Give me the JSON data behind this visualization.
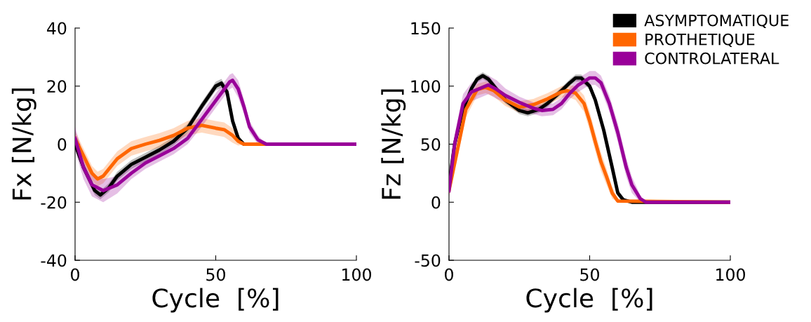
{
  "chart_data": [
    {
      "type": "line",
      "xlabel": "Cycle  [%]",
      "ylabel": "Fx [N/kg]",
      "xlim": [
        0,
        100
      ],
      "xticks": [
        0,
        50,
        100
      ],
      "ylim": [
        -40,
        40
      ],
      "yticks": [
        -40,
        -20,
        0,
        20,
        40
      ],
      "grid": false,
      "legend": false,
      "marker": "none",
      "line_style": "solid",
      "series": [
        {
          "color": "#000000",
          "x": [
            0,
            3,
            7,
            9,
            12,
            15,
            20,
            25,
            30,
            35,
            40,
            45,
            50,
            52,
            54,
            56,
            58,
            60,
            100
          ],
          "values": [
            0,
            -8,
            -16,
            -17.5,
            -15,
            -11,
            -7,
            -4.5,
            -2,
            1,
            5.5,
            13,
            20,
            21,
            18,
            8,
            2,
            0,
            0
          ],
          "lower": [
            -1.5,
            -9.5,
            -17.5,
            -19,
            -16.5,
            -12.5,
            -8.5,
            -6,
            -3.5,
            -0.5,
            4,
            11.5,
            18.5,
            19.5,
            16.5,
            6.5,
            0.5,
            0,
            0
          ],
          "upper": [
            1.5,
            -6.5,
            -14.5,
            -16,
            -13.5,
            -9.5,
            -5.5,
            -3,
            -0.5,
            2.5,
            7,
            14.5,
            21.5,
            22.5,
            19.5,
            9.5,
            3.5,
            0,
            0
          ]
        },
        {
          "color": "#ff6600",
          "x": [
            0,
            3,
            6,
            8,
            10,
            15,
            20,
            25,
            30,
            35,
            40,
            45,
            50,
            53,
            56,
            58,
            60,
            100
          ],
          "values": [
            2,
            -4,
            -10,
            -12,
            -11,
            -5,
            -1.5,
            0,
            1.3,
            3,
            5.5,
            6.5,
            5.5,
            5,
            3,
            1,
            0,
            0
          ],
          "lower": [
            -0.5,
            -6.5,
            -12.5,
            -14.5,
            -13.5,
            -7.5,
            -4,
            -2.5,
            -1.2,
            0.5,
            3,
            4,
            3,
            2.5,
            0.5,
            -0.5,
            0,
            0
          ],
          "upper": [
            4.5,
            -1.5,
            -7.5,
            -9.5,
            -8.5,
            -2.5,
            1,
            2.5,
            3.8,
            5.5,
            8,
            9,
            8,
            7.5,
            5.5,
            2.5,
            0,
            0
          ]
        },
        {
          "color": "#990099",
          "x": [
            0,
            3,
            6,
            10,
            15,
            20,
            25,
            30,
            35,
            40,
            45,
            50,
            55,
            56,
            58,
            60,
            62,
            65,
            68,
            100
          ],
          "values": [
            2,
            -8,
            -14,
            -16,
            -14,
            -10,
            -6.5,
            -4,
            -1.5,
            2,
            8.5,
            15,
            21.5,
            22,
            19,
            13,
            6,
            1.5,
            0,
            0
          ],
          "lower": [
            -2,
            -12,
            -18,
            -20,
            -17,
            -12,
            -8.5,
            -6,
            -3.5,
            0,
            6,
            12.5,
            19,
            19.5,
            16,
            10.5,
            4,
            0,
            0,
            0
          ],
          "upper": [
            6,
            -4,
            -10,
            -12,
            -11,
            -8,
            -4.5,
            -2,
            0.5,
            4,
            11,
            17.5,
            24,
            24.5,
            22,
            15.5,
            8,
            3,
            0,
            0
          ]
        }
      ]
    },
    {
      "type": "line",
      "xlabel": "Cycle  [%]",
      "ylabel": "Fz [N/kg]",
      "xlim": [
        0,
        100
      ],
      "xticks": [
        0,
        50,
        100
      ],
      "ylim": [
        -50,
        150
      ],
      "yticks": [
        -50,
        0,
        50,
        100,
        150
      ],
      "grid": false,
      "legend": "top right",
      "marker": "none",
      "line_style": "solid",
      "series": [
        {
          "name": "ASYMPTOMATIQUE",
          "color": "#000000",
          "x": [
            0,
            2,
            5,
            8,
            10,
            12,
            14,
            17,
            20,
            25,
            28,
            32,
            35,
            40,
            43,
            45,
            47,
            50,
            52,
            55,
            58,
            60,
            62,
            65,
            100
          ],
          "values": [
            15,
            50,
            80,
            98,
            106,
            109,
            106,
            97,
            88,
            79,
            77,
            80,
            85,
            96,
            103,
            107,
            107,
            100,
            88,
            62,
            30,
            8,
            2,
            0,
            0
          ],
          "lower": [
            12,
            47,
            77,
            95,
            103,
            106,
            103,
            94,
            85,
            76,
            74,
            77,
            82,
            93,
            100,
            104,
            104,
            97,
            85,
            59,
            27,
            5,
            0,
            0,
            0
          ],
          "upper": [
            18,
            53,
            83,
            101,
            109,
            112,
            109,
            100,
            91,
            82,
            80,
            83,
            88,
            99,
            106,
            110,
            110,
            103,
            91,
            65,
            33,
            11,
            4,
            0,
            0
          ]
        },
        {
          "name": "PROTHETIQUE",
          "color": "#ff6600",
          "x": [
            0,
            3,
            6,
            10,
            13,
            16,
            20,
            25,
            30,
            35,
            40,
            42,
            45,
            48,
            50,
            52,
            54,
            56,
            58,
            60,
            100
          ],
          "values": [
            10,
            45,
            80,
            97,
            99,
            96,
            88,
            82,
            84,
            89,
            95,
            96,
            94,
            85,
            70,
            52,
            35,
            22,
            8,
            1,
            0
          ],
          "lower": [
            5,
            38,
            73,
            92,
            94,
            91,
            83,
            77,
            79,
            84,
            90,
            91,
            88,
            78,
            62,
            44,
            27,
            15,
            3,
            0,
            0
          ],
          "upper": [
            15,
            52,
            87,
            102,
            104,
            101,
            93,
            87,
            89,
            94,
            100,
            101,
            100,
            92,
            78,
            60,
            43,
            29,
            13,
            3,
            0
          ]
        },
        {
          "name": "CONTROLATERAL",
          "color": "#990099",
          "x": [
            0,
            2,
            5,
            8,
            10,
            14,
            17,
            20,
            25,
            30,
            33,
            37,
            40,
            43,
            46,
            50,
            52,
            54,
            57,
            60,
            63,
            65,
            68,
            70,
            100
          ],
          "values": [
            10,
            50,
            85,
            95,
            97,
            101,
            97,
            92,
            86,
            81,
            79,
            80,
            85,
            94,
            101,
            107,
            107,
            103,
            85,
            60,
            30,
            15,
            3,
            0,
            0
          ],
          "lower": [
            5,
            42,
            77,
            87,
            89,
            93,
            89,
            86,
            81,
            76,
            74,
            75,
            80,
            89,
            95,
            101,
            101,
            97,
            78,
            52,
            22,
            8,
            0,
            0,
            0
          ],
          "upper": [
            15,
            58,
            93,
            103,
            105,
            109,
            105,
            98,
            91,
            86,
            84,
            85,
            90,
            99,
            107,
            113,
            113,
            109,
            92,
            68,
            38,
            22,
            6,
            0,
            0
          ]
        }
      ]
    }
  ]
}
